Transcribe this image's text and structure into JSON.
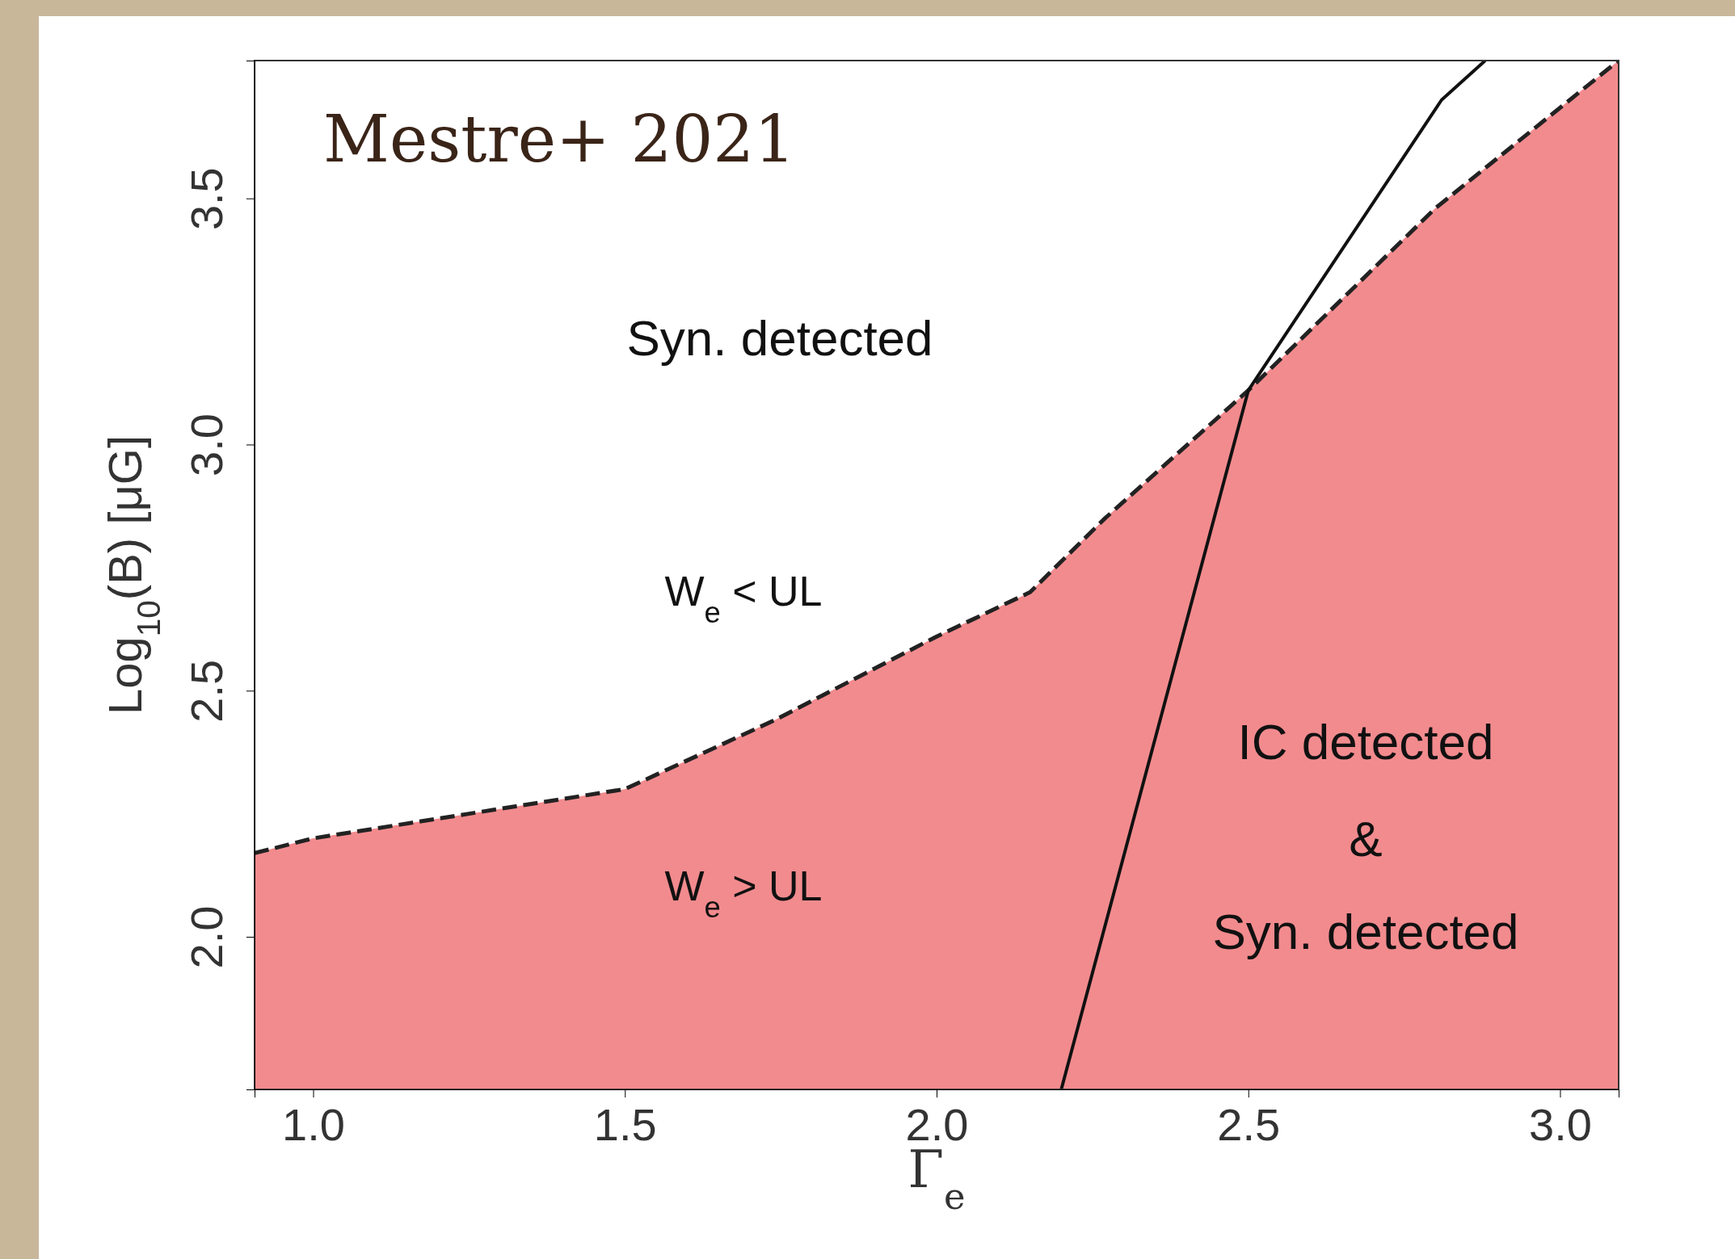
{
  "chart_data": {
    "type": "area",
    "xlabel": "Γ$_{e}$",
    "ylabel": "Log$_{10}$(B) [μG]",
    "xlim": [
      0.906,
      3.094
    ],
    "ylim": [
      1.69,
      3.78
    ],
    "xticks": [
      {
        "value": 1,
        "label": "1.0"
      },
      1.5,
      {
        "value": 2,
        "label": "2.0"
      },
      2.5,
      {
        "value": 3,
        "label": "3.0"
      }
    ],
    "yticks": [
      {
        "value": 2,
        "label": "2.0"
      },
      2.5,
      {
        "value": 3,
        "label": "3.0"
      },
      3.5
    ],
    "series": [
      {
        "color": "#f28b8e",
        "line_style": "dashed",
        "x": [
          0.906,
          1.0,
          1.25,
          1.5,
          1.74,
          2.0,
          2.15,
          2.27,
          2.5,
          2.8,
          3.094
        ],
        "values": [
          2.17,
          2.2,
          2.25,
          2.3,
          2.44,
          2.61,
          2.7,
          2.85,
          3.11,
          3.48,
          3.78
        ]
      },
      {
        "type": "line",
        "color": "#111111",
        "line_style": "solid",
        "x": [
          2.2,
          2.5,
          2.81,
          2.88
        ],
        "values": [
          1.69,
          3.11,
          3.7,
          3.78
        ]
      }
    ],
    "annotations": [
      "Mestre+ 2021",
      "Syn. detected",
      "W$_{e}$ < UL",
      "W$_{e}$ > UL",
      "IC detected",
      "&",
      "Syn. detected"
    ]
  }
}
